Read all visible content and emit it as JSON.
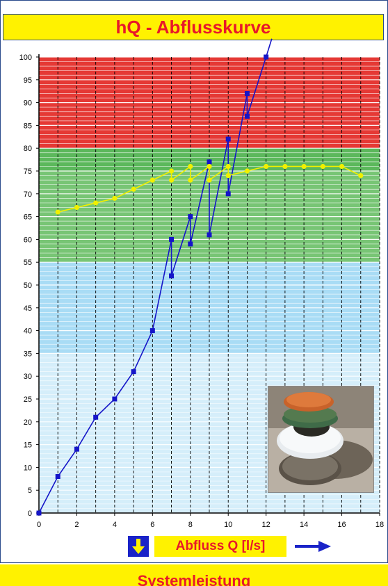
{
  "title": "hQ - Abflusskurve",
  "xlabel": "Abfluss Q [l/s]",
  "footer": "Systemleistung",
  "colors": {
    "title_bg": "#fff200",
    "title_text": "#e8182a",
    "zone_red": "#e53935",
    "zone_green": "#5cb85c",
    "zone_blue": "#a9dcf5",
    "zone_lightblue": "#d5eefa",
    "series_blue": "#1515c8",
    "series_yellow": "#f0f000",
    "arrow_blue": "#1a23c8"
  },
  "icons": [
    "down-arrow-icon",
    "right-arrow-icon"
  ],
  "chart_data": {
    "type": "line",
    "title": "hQ - Abflusskurve",
    "xlabel": "Abfluss Q [l/s]",
    "ylabel": "",
    "xlim": [
      0,
      18
    ],
    "ylim": [
      0,
      100
    ],
    "xticks": [
      0,
      2,
      4,
      6,
      8,
      10,
      12,
      14,
      16,
      18
    ],
    "yticks": [
      0,
      5,
      10,
      15,
      20,
      25,
      30,
      35,
      40,
      45,
      50,
      55,
      60,
      65,
      70,
      75,
      80,
      85,
      90,
      95,
      100
    ],
    "zones": [
      {
        "from": 80,
        "to": 100,
        "color": "red"
      },
      {
        "from": 55,
        "to": 80,
        "color": "green"
      },
      {
        "from": 35,
        "to": 55,
        "color": "blue"
      },
      {
        "from": 0,
        "to": 35,
        "color": "light-blue"
      }
    ],
    "grid": true,
    "series": [
      {
        "color": "blue",
        "x": [
          0,
          1,
          2,
          3,
          4,
          5,
          6,
          7,
          7,
          8,
          8,
          9,
          9,
          10,
          10,
          11,
          11,
          12,
          12.3
        ],
        "y": [
          0,
          8,
          14,
          21,
          25,
          31,
          40,
          60,
          52,
          65,
          59,
          77,
          61,
          82,
          70,
          92,
          87,
          100,
          104
        ]
      },
      {
        "color": "yellow",
        "x": [
          1,
          2,
          3,
          4,
          5,
          6,
          7,
          7,
          8,
          8,
          9,
          9,
          10,
          10,
          11,
          12,
          13,
          14,
          15,
          16,
          17
        ],
        "y": [
          66,
          67,
          68,
          69,
          71,
          73,
          75,
          73,
          76,
          73,
          76,
          73,
          76,
          74,
          75,
          76,
          76,
          76,
          76,
          76,
          74
        ]
      }
    ]
  }
}
